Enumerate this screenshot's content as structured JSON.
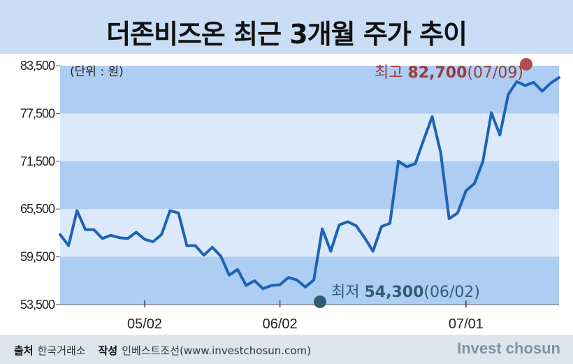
{
  "title": "더존비즈온 최근 3개월 주가 추이",
  "unit_label": "(단위 : 원)",
  "footer": {
    "source_label": "출처",
    "source_value": "한국거래소",
    "author_label": "작성",
    "author_value": "인베스트조선(www.investchosun.com)",
    "brand": "Invest chosun"
  },
  "annotations": {
    "high": {
      "label": "최고",
      "value": "82,700",
      "date": "(07/09)",
      "color": "#b24d4d"
    },
    "low": {
      "label": "최저",
      "value": "54,300",
      "date": "(06/02)",
      "color": "#2f5d73"
    }
  },
  "colors": {
    "line": "#1e63b5",
    "band_dark": "#aecdf2",
    "band_light": "#dce9fa",
    "title_band": "#c9ddf5"
  },
  "chart_data": {
    "type": "line",
    "title": "더존비즈온 최근 3개월 주가 추이",
    "ylabel": "(단위 : 원)",
    "xlabel": "",
    "ylim": [
      53500,
      83500
    ],
    "yticks": [
      53500,
      59500,
      65500,
      71500,
      77500,
      83500
    ],
    "ytick_labels": [
      "53,500",
      "59,500",
      "65,500",
      "71,500",
      "77,500",
      "83,500"
    ],
    "xticks": [
      {
        "label": "05/02",
        "index": 10
      },
      {
        "label": "06/02",
        "index": 26
      },
      {
        "label": "07/01",
        "index": 48
      }
    ],
    "legend": "none",
    "series": [
      {
        "values": [
          62300,
          60900,
          65300,
          62900,
          62900,
          61800,
          62200,
          61900,
          61800,
          62600,
          61700,
          61400,
          62300,
          65300,
          65000,
          60900,
          60900,
          59700,
          60700,
          59600,
          57200,
          57900,
          55900,
          56500,
          55500,
          55900,
          56000,
          56900,
          56600,
          55700,
          56600,
          63000,
          60200,
          63500,
          63900,
          63400,
          61900,
          60200,
          63300,
          63700,
          71500,
          70800,
          71200,
          74200,
          77100,
          72600,
          64300,
          65000,
          67800,
          68700,
          71500,
          77600,
          74800,
          79900,
          81500,
          81000,
          81400,
          80300,
          81300,
          82000
        ]
      }
    ]
  }
}
